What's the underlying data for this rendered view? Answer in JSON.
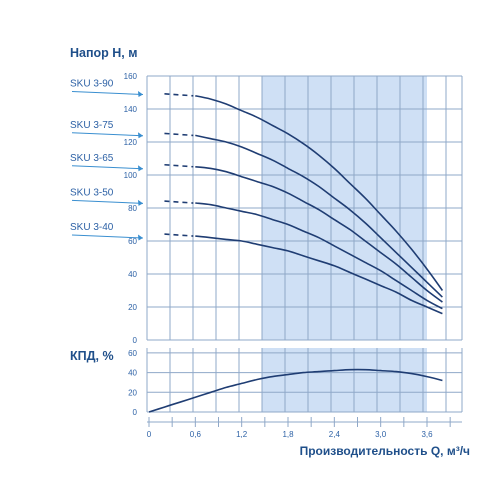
{
  "chart_data": [
    {
      "type": "line",
      "ylabel": "Напор H, м",
      "xlim": [
        0,
        3.9
      ],
      "ylim": [
        0,
        160
      ],
      "y_ticks": [
        0,
        20,
        40,
        60,
        80,
        100,
        120,
        140,
        160
      ],
      "grid": true,
      "highlight_band": {
        "x_range": [
          1.5,
          3.6
        ],
        "color": "#cfe0f5"
      },
      "series_labels_side": "left",
      "series": [
        {
          "name": "SKU 3-90",
          "label_y": 150,
          "dashed_x": [
            0.2,
            0.6
          ],
          "x": [
            0.6,
            0.8,
            1.0,
            1.2,
            1.4,
            1.6,
            1.8,
            2.0,
            2.2,
            2.4,
            2.6,
            2.8,
            3.0,
            3.2,
            3.4,
            3.6,
            3.8
          ],
          "values": [
            148,
            146,
            143,
            139,
            135,
            130,
            125,
            119,
            112,
            104,
            95,
            86,
            76,
            66,
            55,
            43,
            30
          ]
        },
        {
          "name": "SKU 3-75",
          "label_y": 125,
          "dashed_x": [
            0.2,
            0.6
          ],
          "x": [
            0.6,
            0.8,
            1.0,
            1.2,
            1.4,
            1.6,
            1.8,
            2.0,
            2.2,
            2.4,
            2.6,
            2.8,
            3.0,
            3.2,
            3.4,
            3.6,
            3.8
          ],
          "values": [
            124,
            122,
            120,
            117,
            113,
            109,
            104,
            99,
            93,
            86,
            79,
            71,
            62,
            53,
            44,
            35,
            26
          ]
        },
        {
          "name": "SKU 3-65",
          "label_y": 105,
          "dashed_x": [
            0.2,
            0.6
          ],
          "x": [
            0.6,
            0.8,
            1.0,
            1.2,
            1.4,
            1.6,
            1.8,
            2.0,
            2.2,
            2.4,
            2.6,
            2.8,
            3.0,
            3.2,
            3.4,
            3.6,
            3.8
          ],
          "values": [
            105,
            104,
            102,
            99,
            96,
            93,
            89,
            84,
            79,
            73,
            67,
            60,
            53,
            46,
            38,
            30,
            23
          ]
        },
        {
          "name": "SKU 3-50",
          "label_y": 84,
          "dashed_x": [
            0.2,
            0.6
          ],
          "x": [
            0.6,
            0.8,
            1.0,
            1.2,
            1.4,
            1.6,
            1.8,
            2.0,
            2.2,
            2.4,
            2.6,
            2.8,
            3.0,
            3.2,
            3.4,
            3.6,
            3.8
          ],
          "values": [
            83,
            82,
            80,
            78,
            76,
            73,
            70,
            66,
            62,
            57,
            52,
            47,
            42,
            36,
            30,
            24,
            19
          ]
        },
        {
          "name": "SKU 3-40",
          "label_y": 63,
          "dashed_x": [
            0.2,
            0.6
          ],
          "x": [
            0.6,
            0.8,
            1.0,
            1.2,
            1.4,
            1.6,
            1.8,
            2.0,
            2.2,
            2.4,
            2.6,
            2.8,
            3.0,
            3.2,
            3.4,
            3.6,
            3.8
          ],
          "values": [
            63,
            62,
            61,
            60,
            58,
            56,
            54,
            51,
            48,
            45,
            41,
            37,
            33,
            29,
            24,
            20,
            16
          ]
        }
      ]
    },
    {
      "type": "line",
      "ylabel": "КПД, %",
      "xlabel": "Производительность Q, м³/ч",
      "xlim": [
        0,
        3.9
      ],
      "ylim": [
        0,
        65
      ],
      "y_ticks": [
        0,
        20,
        40,
        60
      ],
      "x_ticks": [
        "0",
        "0,6",
        "1,2",
        "1,8",
        "2,4",
        "3,0",
        "3,6"
      ],
      "x_tick_values": [
        0,
        0.6,
        1.2,
        1.8,
        2.4,
        3.0,
        3.6
      ],
      "grid": true,
      "highlight_band": {
        "x_range": [
          1.5,
          3.6
        ],
        "color": "#cfe0f5"
      },
      "series": [
        {
          "x": [
            0,
            0.2,
            0.4,
            0.6,
            0.8,
            1.0,
            1.2,
            1.4,
            1.6,
            1.8,
            2.0,
            2.2,
            2.4,
            2.6,
            2.8,
            3.0,
            3.2,
            3.4,
            3.6,
            3.8
          ],
          "values": [
            0,
            5,
            10,
            15,
            20,
            25,
            29,
            33,
            36,
            38,
            40,
            41,
            42,
            43,
            43,
            42,
            41,
            39,
            36,
            32
          ]
        }
      ]
    }
  ],
  "colors": {
    "curve": "#1f3d73",
    "grid": "#8fa8c8",
    "band": "#cfe0f5",
    "text": "#2e62a6",
    "title": "#1f4f8a",
    "arrow": "#3a8fd0"
  }
}
